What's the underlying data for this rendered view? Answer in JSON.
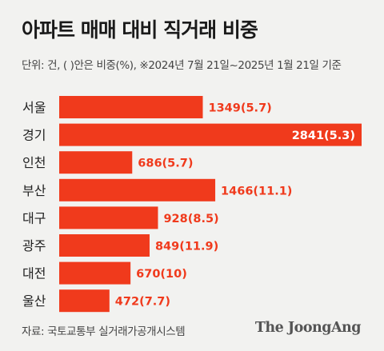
{
  "title": "아파트 매매 대비 직거래 비중",
  "subtitle": "단위: 건, ( )안은 비중(%),  ※2024년 7월 21일~2025년 1월 21일 기준",
  "source": "자료: 국토교통부 실거래가공개시스템",
  "logo": "The JoongAng",
  "colors": {
    "bar": "#f03a1c",
    "value_outside": "#f03a1c",
    "value_inside": "#ffffff"
  },
  "chart_data": {
    "type": "bar",
    "orientation": "horizontal",
    "categories": [
      "서울",
      "경기",
      "인천",
      "부산",
      "대구",
      "광주",
      "대전",
      "울산"
    ],
    "values": [
      1349,
      2841,
      686,
      1466,
      928,
      849,
      670,
      472
    ],
    "value_labels": [
      "1349(5.7)",
      "2841(5.3)",
      "686(5.7)",
      "1466(11.1)",
      "928(8.5)",
      "849(11.9)",
      "670(10)",
      "472(7.7)"
    ],
    "shares_percent": [
      5.7,
      5.3,
      5.7,
      11.1,
      8.5,
      11.9,
      10,
      7.7
    ],
    "xlim": [
      0,
      2841
    ],
    "grid": false
  }
}
